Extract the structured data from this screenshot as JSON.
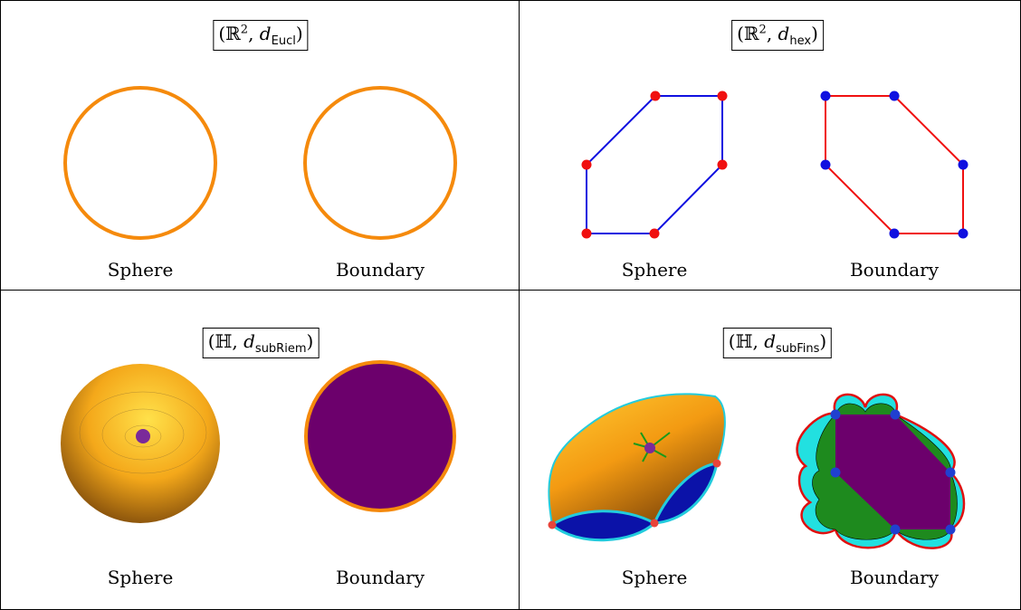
{
  "panels": [
    {
      "title": {
        "lead": "(ℝ",
        "sup": "2",
        "mid": ", ",
        "metric": "d",
        "sub": "Eucl",
        "tail": ")"
      },
      "left_label": "Sphere",
      "right_label": "Boundary"
    },
    {
      "title": {
        "lead": "(ℝ",
        "sup": "2",
        "mid": ", ",
        "metric": "d",
        "sub": "hex",
        "tail": ")"
      },
      "left_label": "Sphere",
      "right_label": "Boundary"
    },
    {
      "title": {
        "lead": "(ℍ",
        "mid": ", ",
        "metric": "d",
        "sub": "subRiem",
        "tail": ")"
      },
      "left_label": "Sphere",
      "right_label": "Boundary"
    },
    {
      "title": {
        "lead": "(ℍ",
        "mid": ", ",
        "metric": "d",
        "sub": "subFins",
        "tail": ")"
      },
      "left_label": "Sphere",
      "right_label": "Boundary"
    }
  ]
}
